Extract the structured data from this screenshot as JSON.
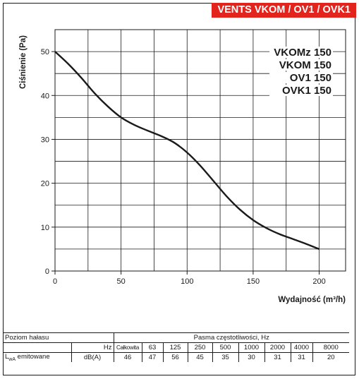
{
  "title": "VENTS VKOM / OV1 / OVK1",
  "colors": {
    "banner": "#e2241d",
    "line": "#1a1a1a"
  },
  "chart_data": {
    "type": "line",
    "xlabel": "Wydajność (m³/h)",
    "ylabel": "Ciśnienie (Pa)",
    "xlim": [
      0,
      220
    ],
    "ylim": [
      0,
      55
    ],
    "x_ticks": [
      0,
      50,
      100,
      150,
      200
    ],
    "y_ticks": [
      0,
      10,
      20,
      30,
      40,
      50
    ],
    "grid": true,
    "series_labels": [
      "VKOMz 150",
      "VKOM 150",
      "OV1 150",
      "OVK1 150"
    ],
    "series": [
      {
        "x": [
          0,
          10,
          20,
          30,
          40,
          50,
          60,
          70,
          80,
          90,
          100,
          110,
          120,
          130,
          140,
          150,
          160,
          170,
          180,
          190,
          200
        ],
        "y": [
          50,
          47.2,
          44,
          40.5,
          37.5,
          35,
          33.3,
          32,
          30.8,
          29.3,
          27,
          24,
          20.5,
          17,
          14,
          11.6,
          9.8,
          8.4,
          7.3,
          6.2,
          5
        ]
      }
    ]
  },
  "noise_table": {
    "row_label": "Poziom hałasu",
    "band_header": "Pasma częstotliwości, Hz",
    "hz_label": "Hz",
    "unit": "dB(A)",
    "emit_label": "L",
    "emit_sub": "wA",
    "emit_suffix": " emitowane",
    "bands": [
      "Całkowita",
      "63",
      "125",
      "250",
      "500",
      "1000",
      "2000",
      "4000",
      "8000"
    ],
    "values": [
      "46",
      "47",
      "56",
      "45",
      "35",
      "30",
      "31",
      "31",
      "20"
    ]
  }
}
